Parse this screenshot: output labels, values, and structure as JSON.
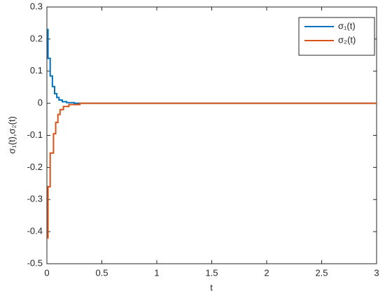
{
  "chart_data": {
    "type": "line",
    "xlabel": "t",
    "ylabel": "σ₁(t),σ₂(t)",
    "xlim": [
      0,
      3
    ],
    "xticks": [
      0,
      0.5,
      1,
      1.5,
      2,
      2.5,
      3
    ],
    "ylim": [
      -0.5,
      0.3
    ],
    "yticks": [
      -0.5,
      -0.4,
      -0.3,
      -0.2,
      -0.1,
      0,
      0.1,
      0.2,
      0.3
    ],
    "grid": false,
    "legend": "northeast",
    "series": [
      {
        "name": "σ₁(t)",
        "color": "#0072bd",
        "x": [
          0,
          0.01,
          0.01,
          0.03,
          0.03,
          0.05,
          0.05,
          0.07,
          0.07,
          0.09,
          0.09,
          0.11,
          0.11,
          0.14,
          0.14,
          0.18,
          0.18,
          0.25,
          0.25,
          3
        ],
        "values": [
          0.23,
          0.23,
          0.14,
          0.14,
          0.085,
          0.085,
          0.052,
          0.052,
          0.03,
          0.03,
          0.018,
          0.018,
          0.01,
          0.01,
          0.005,
          0.005,
          0.002,
          0.002,
          0,
          0
        ]
      },
      {
        "name": "σ₂(t)",
        "color": "#d95319",
        "x": [
          0,
          0.01,
          0.01,
          0.03,
          0.03,
          0.06,
          0.06,
          0.08,
          0.08,
          0.1,
          0.1,
          0.12,
          0.12,
          0.15,
          0.15,
          0.2,
          0.2,
          0.3,
          0.3,
          3
        ],
        "values": [
          -0.42,
          -0.42,
          -0.26,
          -0.26,
          -0.155,
          -0.155,
          -0.095,
          -0.095,
          -0.06,
          -0.06,
          -0.035,
          -0.035,
          -0.02,
          -0.02,
          -0.01,
          -0.01,
          -0.004,
          -0.004,
          0,
          0
        ]
      }
    ]
  }
}
